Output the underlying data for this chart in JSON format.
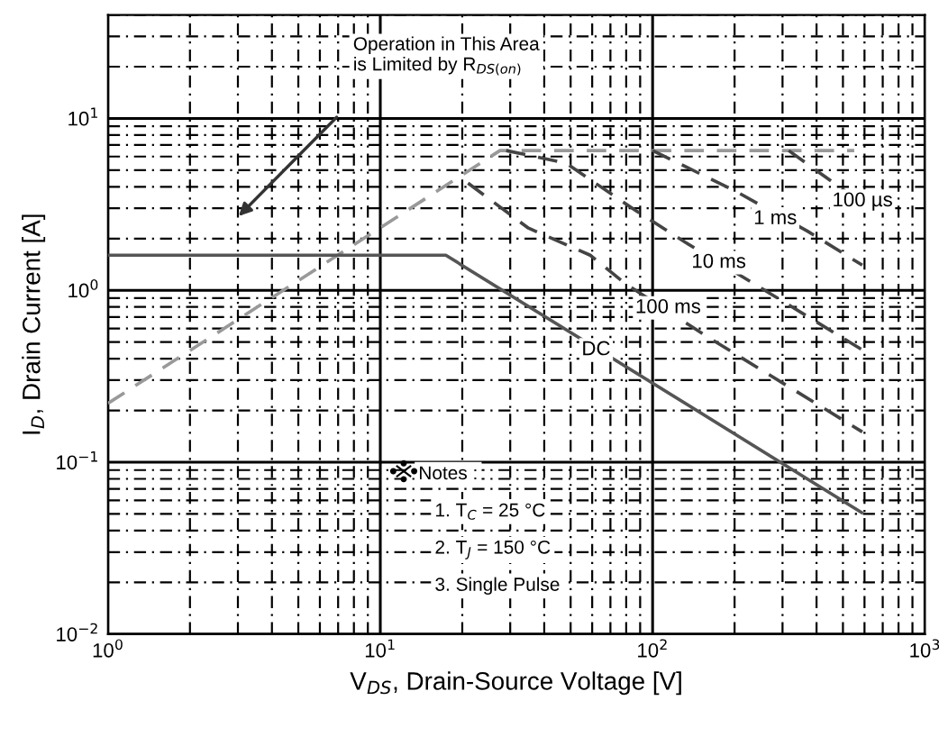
{
  "chart_data": {
    "type": "line",
    "xlabel": "V$_{DS}$, Drain-Source Voltage [V]",
    "ylabel": "I$_{D}$, Drain Current [A]",
    "log": "xy",
    "xlim": [
      1,
      1000
    ],
    "ylim": [
      0.01,
      40
    ],
    "xticks": [
      {
        "value": 1,
        "label": "10$^{0}$"
      },
      {
        "value": 10,
        "label": "10$^{1}$"
      },
      {
        "value": 100,
        "label": "10$^{2}$"
      },
      {
        "value": 1000,
        "label": "10$^{3}$"
      }
    ],
    "yticks": [
      {
        "value": 0.01,
        "label": "10$^{−2}$"
      },
      {
        "value": 0.1,
        "label": "10$^{−1}$"
      },
      {
        "value": 1,
        "label": "10$^{0}$"
      },
      {
        "value": 10,
        "label": "10$^{1}$"
      }
    ],
    "grid": true,
    "series": [
      {
        "color": "#999999",
        "line_style": "dashed",
        "x": [
          1,
          27.5,
          550
        ],
        "values": [
          0.22,
          6.5,
          6.5
        ]
      },
      {
        "color": "#444444",
        "line_style": "dashed",
        "x": [
          316,
          589
        ],
        "values": [
          6.5,
          3.2
        ]
      },
      {
        "color": "#444444",
        "line_style": "dashed",
        "x": [
          100,
          200,
          372,
          589
        ],
        "values": [
          6.5,
          3.8,
          2.2,
          1.4
        ]
      },
      {
        "color": "#444444",
        "line_style": "dashed",
        "x": [
          29,
          48,
          87,
          132,
          234,
          589
        ],
        "values": [
          6.5,
          5.5,
          2.9,
          1.9,
          1.1,
          0.45
        ]
      },
      {
        "color": "#444444",
        "line_style": "dashed",
        "x": [
          21,
          35,
          59,
          79,
          155,
          589
        ],
        "values": [
          4.2,
          2.3,
          1.6,
          1.1,
          0.55,
          0.15
        ]
      },
      {
        "color": "#555555",
        "line_style": "solid",
        "x": [
          1,
          17.4,
          585
        ],
        "values": [
          1.6,
          1.6,
          0.051
        ]
      }
    ],
    "annotations": [
      "Operation in This Area\nis Limited by R$_{DS(on)}$",
      {
        "text": "100 µs",
        "x": 590,
        "y": 3.3
      },
      {
        "text": "1 ms",
        "x": 282,
        "y": 2.6
      },
      {
        "text": "10 ms",
        "x": 175,
        "y": 1.45
      },
      {
        "text": "100 ms",
        "x": 114,
        "y": 0.79
      },
      {
        "text": "DC",
        "x": 62,
        "y": 0.45
      },
      "Notes :",
      "1. T$_{C}$ = 25 °C",
      "2. T$_{J}$ = 150 °C",
      "3. Single Pulse"
    ]
  }
}
